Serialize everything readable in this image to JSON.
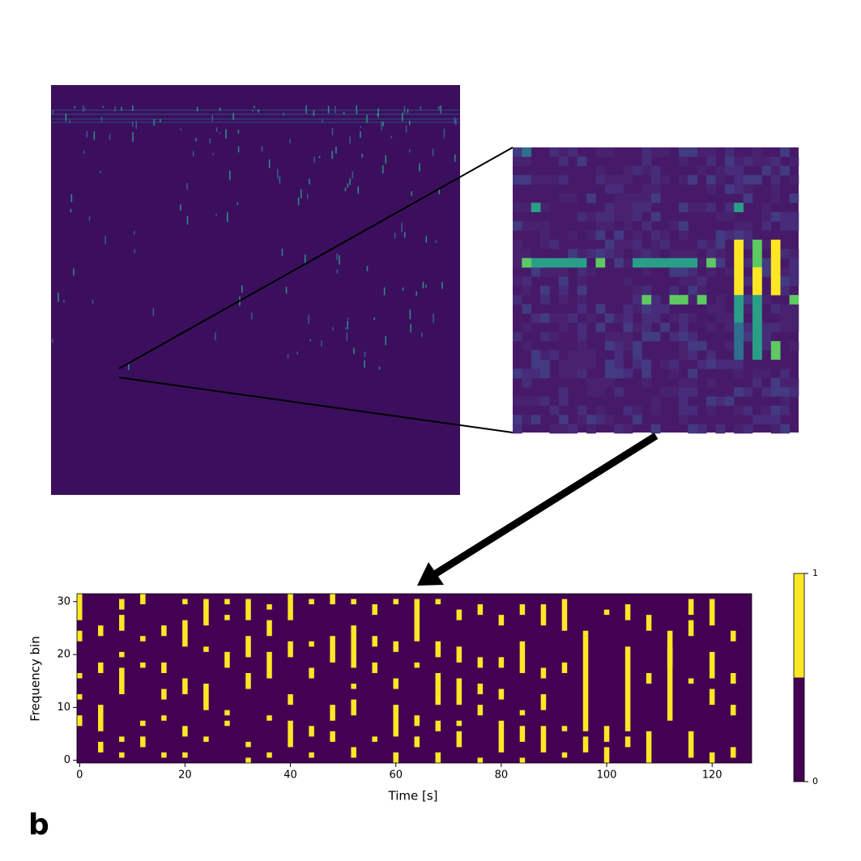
{
  "panel_label": "b",
  "chart_data": {
    "type": "raster",
    "xlabel": "Time [s]",
    "ylabel": "Frequency bin",
    "xlim": [
      -0.5,
      127.5
    ],
    "ylim": [
      -0.5,
      31.5
    ],
    "xticks": [
      0,
      20,
      40,
      60,
      80,
      100,
      120
    ],
    "yticks": [
      0,
      10,
      20,
      30
    ],
    "colors": [
      "#440154",
      "#fde725"
    ],
    "colorbar": {
      "lim": [
        0,
        1
      ],
      "ticks": [
        0,
        1
      ]
    },
    "events": [
      [
        0,
        27,
        31
      ],
      [
        0,
        23,
        24
      ],
      [
        0,
        16,
        16
      ],
      [
        0,
        12,
        12
      ],
      [
        0,
        7,
        8
      ],
      [
        4,
        24,
        25
      ],
      [
        4,
        17,
        18
      ],
      [
        4,
        6,
        10
      ],
      [
        4,
        2,
        3
      ],
      [
        8,
        29,
        30
      ],
      [
        8,
        25,
        27
      ],
      [
        8,
        20,
        20
      ],
      [
        8,
        13,
        17
      ],
      [
        8,
        4,
        4
      ],
      [
        8,
        1,
        1
      ],
      [
        12,
        30,
        31
      ],
      [
        12,
        23,
        23
      ],
      [
        12,
        18,
        18
      ],
      [
        12,
        7,
        7
      ],
      [
        12,
        3,
        4
      ],
      [
        16,
        24,
        25
      ],
      [
        16,
        17,
        18
      ],
      [
        16,
        12,
        13
      ],
      [
        16,
        8,
        8
      ],
      [
        16,
        1,
        1
      ],
      [
        20,
        30,
        30
      ],
      [
        20,
        22,
        26
      ],
      [
        20,
        13,
        15
      ],
      [
        20,
        5,
        6
      ],
      [
        20,
        1,
        1
      ],
      [
        24,
        26,
        30
      ],
      [
        24,
        21,
        21
      ],
      [
        24,
        10,
        14
      ],
      [
        24,
        4,
        4
      ],
      [
        28,
        30,
        30
      ],
      [
        28,
        27,
        27
      ],
      [
        28,
        18,
        20
      ],
      [
        28,
        9,
        9
      ],
      [
        28,
        7,
        7
      ],
      [
        32,
        27,
        30
      ],
      [
        32,
        20,
        23
      ],
      [
        32,
        14,
        16
      ],
      [
        32,
        3,
        3
      ],
      [
        32,
        0,
        0
      ],
      [
        36,
        29,
        29
      ],
      [
        36,
        24,
        26
      ],
      [
        36,
        16,
        20
      ],
      [
        36,
        8,
        8
      ],
      [
        36,
        1,
        1
      ],
      [
        40,
        27,
        31
      ],
      [
        40,
        20,
        22
      ],
      [
        40,
        11,
        12
      ],
      [
        40,
        3,
        7
      ],
      [
        44,
        30,
        30
      ],
      [
        44,
        22,
        22
      ],
      [
        44,
        16,
        17
      ],
      [
        44,
        5,
        6
      ],
      [
        44,
        1,
        1
      ],
      [
        48,
        30,
        31
      ],
      [
        48,
        19,
        23
      ],
      [
        48,
        8,
        10
      ],
      [
        48,
        4,
        5
      ],
      [
        52,
        30,
        30
      ],
      [
        52,
        18,
        25
      ],
      [
        52,
        14,
        14
      ],
      [
        52,
        9,
        11
      ],
      [
        52,
        1,
        2
      ],
      [
        56,
        28,
        29
      ],
      [
        56,
        22,
        23
      ],
      [
        56,
        17,
        18
      ],
      [
        56,
        4,
        4
      ],
      [
        60,
        30,
        30
      ],
      [
        60,
        21,
        22
      ],
      [
        60,
        14,
        15
      ],
      [
        60,
        5,
        10
      ],
      [
        60,
        0,
        1
      ],
      [
        64,
        23,
        30
      ],
      [
        64,
        18,
        18
      ],
      [
        64,
        7,
        8
      ],
      [
        64,
        3,
        4
      ],
      [
        68,
        30,
        30
      ],
      [
        68,
        20,
        22
      ],
      [
        68,
        11,
        16
      ],
      [
        68,
        6,
        7
      ],
      [
        68,
        0,
        1
      ],
      [
        72,
        27,
        28
      ],
      [
        72,
        19,
        21
      ],
      [
        72,
        11,
        15
      ],
      [
        72,
        7,
        7
      ],
      [
        72,
        3,
        5
      ],
      [
        76,
        28,
        29
      ],
      [
        76,
        18,
        19
      ],
      [
        76,
        13,
        14
      ],
      [
        76,
        9,
        10
      ],
      [
        76,
        0,
        0
      ],
      [
        80,
        26,
        27
      ],
      [
        80,
        18,
        19
      ],
      [
        80,
        12,
        13
      ],
      [
        80,
        2,
        7
      ],
      [
        84,
        28,
        29
      ],
      [
        84,
        17,
        22
      ],
      [
        84,
        9,
        9
      ],
      [
        84,
        4,
        6
      ],
      [
        84,
        0,
        0
      ],
      [
        88,
        26,
        29
      ],
      [
        88,
        16,
        17
      ],
      [
        88,
        10,
        12
      ],
      [
        88,
        2,
        6
      ],
      [
        92,
        25,
        30
      ],
      [
        92,
        17,
        18
      ],
      [
        92,
        6,
        6
      ],
      [
        92,
        1,
        1
      ],
      [
        96,
        24,
        24
      ],
      [
        96,
        6,
        23
      ],
      [
        96,
        2,
        4
      ],
      [
        100,
        28,
        28
      ],
      [
        100,
        4,
        6
      ],
      [
        100,
        0,
        2
      ],
      [
        104,
        27,
        29
      ],
      [
        104,
        6,
        21
      ],
      [
        104,
        3,
        4
      ],
      [
        108,
        25,
        27
      ],
      [
        108,
        15,
        16
      ],
      [
        108,
        0,
        5
      ],
      [
        112,
        18,
        21
      ],
      [
        112,
        8,
        24
      ],
      [
        116,
        28,
        30
      ],
      [
        116,
        24,
        26
      ],
      [
        116,
        15,
        15
      ],
      [
        116,
        1,
        5
      ],
      [
        120,
        26,
        30
      ],
      [
        120,
        16,
        20
      ],
      [
        120,
        11,
        13
      ],
      [
        120,
        0,
        1
      ],
      [
        124,
        23,
        24
      ],
      [
        124,
        15,
        16
      ],
      [
        124,
        9,
        10
      ],
      [
        124,
        1,
        2
      ]
    ]
  }
}
